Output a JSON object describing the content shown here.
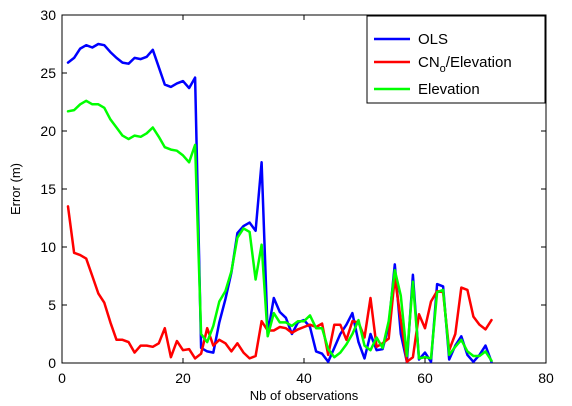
{
  "chart_data": {
    "type": "line",
    "xlabel": "Nb of observations",
    "ylabel": "Error (m)",
    "xlim": [
      0,
      80
    ],
    "ylim": [
      0,
      30
    ],
    "xticks": [
      0,
      20,
      40,
      60,
      80
    ],
    "yticks": [
      0,
      5,
      10,
      15,
      20,
      25,
      30
    ],
    "grid": false,
    "legend_position": "top-right",
    "series": [
      {
        "name": "OLS",
        "legend_main": "OLS",
        "legend_sub": "",
        "legend_tail": "",
        "color": "#0000ff",
        "x": [
          1,
          2,
          3,
          4,
          5,
          6,
          7,
          8,
          9,
          10,
          11,
          12,
          13,
          14,
          15,
          16,
          17,
          18,
          19,
          20,
          21,
          22,
          23,
          24,
          25,
          26,
          27,
          28,
          29,
          30,
          31,
          32,
          33,
          34,
          35,
          36,
          37,
          38,
          39,
          40,
          41,
          42,
          43,
          44,
          45,
          46,
          47,
          48,
          49,
          50,
          51,
          52,
          53,
          54,
          55,
          56,
          57,
          58,
          59,
          60,
          61,
          62,
          63,
          64,
          65,
          66,
          67,
          68,
          69,
          70,
          71
        ],
        "y": [
          25.9,
          26.3,
          27.1,
          27.4,
          27.2,
          27.5,
          27.4,
          26.8,
          26.3,
          25.9,
          25.8,
          26.3,
          26.2,
          26.4,
          27.0,
          25.5,
          24.0,
          23.8,
          24.1,
          24.3,
          23.7,
          24.6,
          1.3,
          1.0,
          0.9,
          3.5,
          5.5,
          7.8,
          11.2,
          11.8,
          12.1,
          11.4,
          17.3,
          2.5,
          5.6,
          4.4,
          3.9,
          2.5,
          3.5,
          3.7,
          3.1,
          1.0,
          0.8,
          0.1,
          1.3,
          2.5,
          3.3,
          4.3,
          1.8,
          0.4,
          2.5,
          1.1,
          1.2,
          3.2,
          8.5,
          2.5,
          0.1,
          7.6,
          0.3,
          0.9,
          0.1,
          6.8,
          6.6,
          0.3,
          1.5,
          2.3,
          0.7,
          0.1,
          0.7,
          1.5,
          0.1
        ]
      },
      {
        "name": "CNo/Elevation",
        "legend_main": "CN",
        "legend_sub": "o",
        "legend_tail": "/Elevation",
        "color": "#ff0000",
        "x": [
          1,
          2,
          3,
          4,
          5,
          6,
          7,
          8,
          9,
          10,
          11,
          12,
          13,
          14,
          15,
          16,
          17,
          18,
          19,
          20,
          21,
          22,
          23,
          24,
          25,
          26,
          27,
          28,
          29,
          30,
          31,
          32,
          33,
          34,
          35,
          36,
          37,
          38,
          39,
          40,
          41,
          42,
          43,
          44,
          45,
          46,
          47,
          48,
          49,
          50,
          51,
          52,
          53,
          54,
          55,
          56,
          57,
          58,
          59,
          60,
          61,
          62,
          63,
          64,
          65,
          66,
          67,
          68,
          69,
          70,
          71
        ],
        "y": [
          13.5,
          9.5,
          9.3,
          9.0,
          7.5,
          6.0,
          5.2,
          3.5,
          2.0,
          2.0,
          1.8,
          0.9,
          1.5,
          1.5,
          1.4,
          1.7,
          3.0,
          0.5,
          1.9,
          1.1,
          1.2,
          0.4,
          0.8,
          3.0,
          1.5,
          2.0,
          1.7,
          1.0,
          1.7,
          0.9,
          0.4,
          0.6,
          3.6,
          2.8,
          2.8,
          3.1,
          3.0,
          2.6,
          2.9,
          3.1,
          3.3,
          3.1,
          3.4,
          0.7,
          3.3,
          3.3,
          2.0,
          3.6,
          3.5,
          2.2,
          5.6,
          1.4,
          1.7,
          2.1,
          7.4,
          3.7,
          0.1,
          0.5,
          4.2,
          3.0,
          5.3,
          6.2,
          6.1,
          1.1,
          2.5,
          6.5,
          6.3,
          4.0,
          3.3,
          2.9,
          3.7
        ]
      },
      {
        "name": "Elevation",
        "legend_main": "Elevation",
        "legend_sub": "",
        "legend_tail": "",
        "color": "#00ff00",
        "x": [
          1,
          2,
          3,
          4,
          5,
          6,
          7,
          8,
          9,
          10,
          11,
          12,
          13,
          14,
          15,
          16,
          17,
          18,
          19,
          20,
          21,
          22,
          23,
          24,
          25,
          26,
          27,
          28,
          29,
          30,
          31,
          32,
          33,
          34,
          35,
          36,
          37,
          38,
          39,
          40,
          41,
          42,
          43,
          44,
          45,
          46,
          47,
          48,
          49,
          50,
          51,
          52,
          53,
          54,
          55,
          56,
          57,
          58,
          59,
          60,
          61,
          62,
          63,
          64,
          65,
          66,
          67,
          68,
          69,
          70,
          71
        ],
        "y": [
          21.7,
          21.8,
          22.3,
          22.6,
          22.3,
          22.3,
          22.0,
          21.0,
          20.3,
          19.6,
          19.3,
          19.6,
          19.5,
          19.8,
          20.3,
          19.5,
          18.6,
          18.4,
          18.3,
          17.9,
          17.3,
          18.8,
          2.5,
          1.8,
          3.2,
          5.3,
          6.2,
          7.9,
          10.8,
          11.6,
          11.3,
          7.2,
          10.2,
          2.3,
          4.3,
          3.5,
          3.5,
          3.2,
          3.6,
          3.6,
          4.1,
          3.0,
          3.0,
          1.2,
          0.5,
          0.9,
          1.6,
          2.5,
          3.7,
          1.5,
          1.1,
          2.2,
          1.3,
          3.6,
          8.0,
          5.8,
          0.6,
          7.0,
          0.4,
          0.5,
          0.4,
          6.1,
          6.3,
          0.7,
          1.4,
          2.0,
          1.0,
          0.6,
          0.6,
          1.0,
          0.2
        ]
      }
    ]
  }
}
